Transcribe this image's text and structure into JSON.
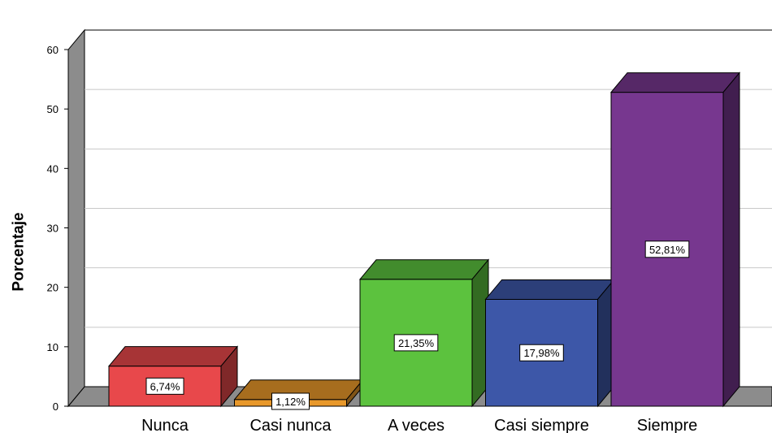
{
  "chart_data": {
    "type": "bar",
    "style": "3d",
    "title": "",
    "xlabel": "",
    "ylabel": "Porcentaje",
    "ylim": [
      0,
      60
    ],
    "yticks": [
      0,
      10,
      20,
      30,
      40,
      50,
      60
    ],
    "grid": true,
    "categories": [
      "Nunca",
      "Casi nunca",
      "A veces",
      "Casi siempre",
      "Siempre"
    ],
    "values": [
      6.74,
      1.12,
      21.35,
      17.98,
      52.81
    ],
    "data_labels": [
      "6,74%",
      "1,12%",
      "21,35%",
      "17,98%",
      "52,81%"
    ],
    "colors": [
      "#e8484b",
      "#e8982a",
      "#5cc23e",
      "#3d57a8",
      "#77378f"
    ]
  }
}
